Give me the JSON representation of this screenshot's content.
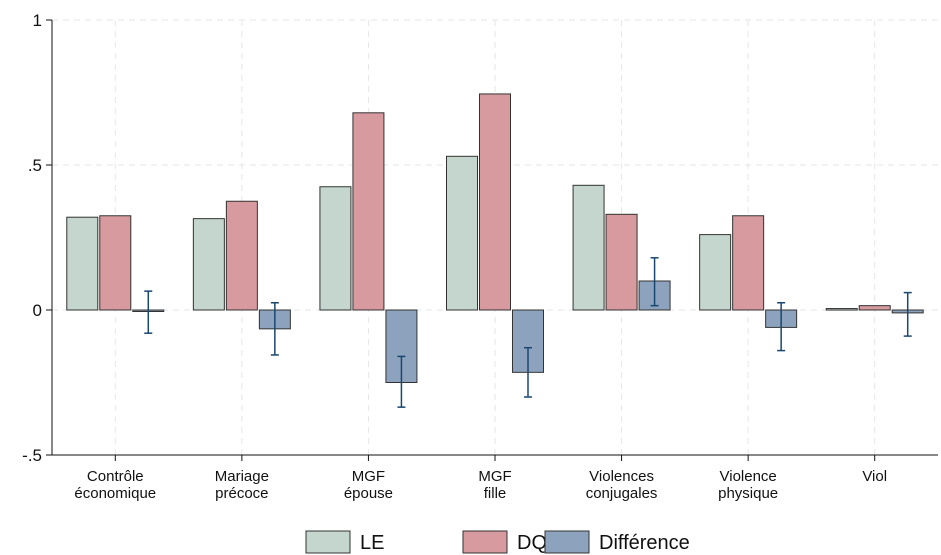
{
  "chart_data": {
    "type": "bar",
    "categories": [
      [
        "Contrôle",
        "économique"
      ],
      [
        "Mariage",
        "précoce"
      ],
      [
        "MGF",
        "épouse"
      ],
      [
        "MGF",
        "fille"
      ],
      [
        "Violences",
        "conjugales"
      ],
      [
        "Violence",
        "physique"
      ],
      [
        "Viol"
      ]
    ],
    "series": [
      {
        "name": "LE",
        "color": "#c5d6cf",
        "values": [
          0.32,
          0.315,
          0.425,
          0.53,
          0.43,
          0.26,
          0.005
        ]
      },
      {
        "name": "DQ",
        "color": "#d79a9e",
        "values": [
          0.325,
          0.375,
          0.68,
          0.745,
          0.33,
          0.325,
          0.015
        ]
      },
      {
        "name": "Différence",
        "color": "#8da3bd",
        "values": [
          -0.005,
          -0.065,
          -0.25,
          -0.215,
          0.1,
          -0.06,
          -0.01
        ],
        "ci_low": [
          -0.08,
          -0.155,
          -0.335,
          -0.3,
          0.015,
          -0.14,
          -0.09
        ],
        "ci_high": [
          0.065,
          0.025,
          -0.16,
          -0.13,
          0.18,
          0.025,
          0.06
        ]
      }
    ],
    "ylim": [
      -0.5,
      1
    ],
    "yticks": [
      -0.5,
      0,
      0.5,
      1
    ],
    "ytick_labels": [
      "-.5",
      "0",
      ".5",
      "1"
    ],
    "xlabel": "",
    "ylabel": "",
    "grid": true,
    "legend_position": "bottom",
    "legend": [
      "LE",
      "DQ",
      "Différence"
    ],
    "error_bar_color": "#1a476f"
  }
}
